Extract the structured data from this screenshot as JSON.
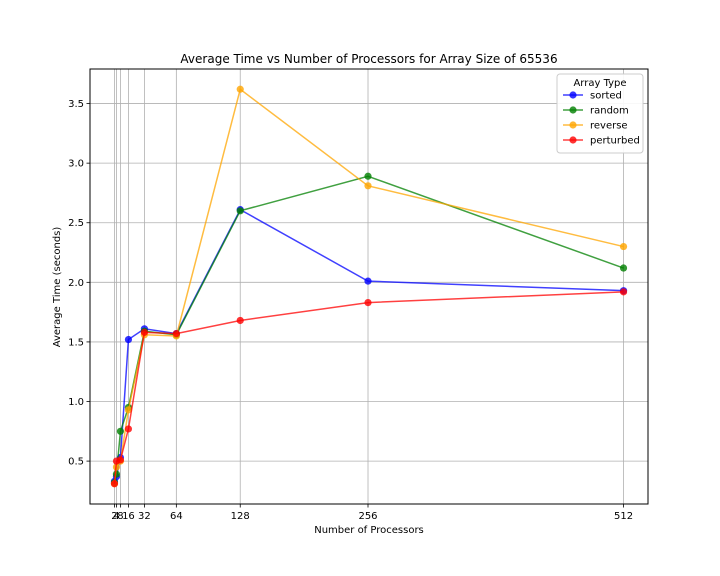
{
  "chart_data": {
    "type": "line",
    "title": "Average Time vs Number of Processors for Array Size of 65536",
    "xlabel": "Number of Processors",
    "ylabel": "Average Time (seconds)",
    "xlim": [
      -22.5,
      536.5
    ],
    "ylim": [
      0.14,
      3.79
    ],
    "x_ticks": [
      2,
      4,
      8,
      16,
      32,
      64,
      128,
      256,
      512
    ],
    "x_tick_labels": [
      "2",
      "4",
      "8",
      "16",
      "32",
      "64",
      "128",
      "256",
      "512"
    ],
    "y_ticks": [
      0.5,
      1.0,
      1.5,
      2.0,
      2.5,
      3.0,
      3.5
    ],
    "y_tick_labels": [
      "0.5",
      "1.0",
      "1.5",
      "2.0",
      "2.5",
      "3.0",
      "3.5"
    ],
    "grid": true,
    "legend": {
      "title": "Array Type",
      "position": "top-right"
    },
    "x": [
      2,
      4,
      8,
      16,
      32,
      64,
      128,
      256,
      512
    ],
    "series": [
      {
        "name": "sorted",
        "color": "#0000ff",
        "values": [
          0.33,
          0.37,
          0.53,
          1.52,
          1.61,
          1.57,
          2.61,
          2.01,
          1.93
        ]
      },
      {
        "name": "random",
        "color": "#008000",
        "values": [
          0.32,
          0.39,
          0.75,
          0.95,
          1.59,
          1.56,
          2.6,
          2.89,
          2.12
        ]
      },
      {
        "name": "reverse",
        "color": "#ffa500",
        "values": [
          0.31,
          0.45,
          0.5,
          0.93,
          1.56,
          1.55,
          3.62,
          2.81,
          2.3
        ]
      },
      {
        "name": "perturbed",
        "color": "#ff0000",
        "values": [
          0.31,
          0.5,
          0.51,
          0.77,
          1.58,
          1.57,
          1.68,
          1.83,
          1.92
        ]
      }
    ]
  }
}
